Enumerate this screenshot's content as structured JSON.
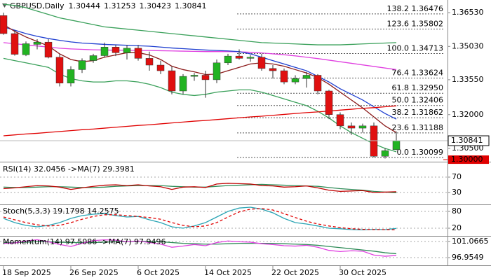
{
  "chart_data": [
    {
      "type": "candlestick",
      "symbol": "GBPUSD,Daily",
      "header_values": [
        1.30444,
        1.31253,
        1.30423,
        1.30841
      ],
      "categories": [
        "18 Sep 2025",
        null,
        null,
        null,
        null,
        null,
        "26 Sep 2025",
        null,
        null,
        null,
        null,
        null,
        "6 Oct 2025",
        null,
        null,
        null,
        null,
        null,
        "14 Oct 2025",
        null,
        null,
        null,
        null,
        null,
        "22 Oct 2025",
        null,
        null,
        null,
        null,
        null,
        "30 Oct 2025",
        null,
        null,
        null,
        null,
        null
      ],
      "open": [
        1.364,
        1.356,
        1.3466,
        1.3512,
        1.3522,
        1.3455,
        1.334,
        1.34,
        1.344,
        1.3462,
        1.35,
        1.3475,
        1.3495,
        1.345,
        1.342,
        1.3395,
        1.3305,
        1.337,
        1.3375,
        1.3355,
        1.343,
        1.346,
        1.345,
        1.3455,
        1.3405,
        1.3395,
        1.3345,
        1.336,
        1.3375,
        1.3305,
        1.32,
        1.315,
        1.314,
        1.315,
        1.3015,
        1.30444
      ],
      "high": [
        1.3653,
        1.3575,
        1.3525,
        1.3535,
        1.3535,
        1.347,
        1.3415,
        1.345,
        1.347,
        1.352,
        1.351,
        1.351,
        1.351,
        1.348,
        1.344,
        1.3415,
        1.338,
        1.3385,
        1.3395,
        1.3445,
        1.347,
        1.349,
        1.3465,
        1.347,
        1.342,
        1.3405,
        1.3375,
        1.339,
        1.338,
        1.331,
        1.321,
        1.3165,
        1.316,
        1.3165,
        1.305,
        1.31253
      ],
      "low": [
        1.3555,
        1.3462,
        1.346,
        1.349,
        1.345,
        1.3325,
        1.3325,
        1.3385,
        1.343,
        1.3455,
        1.346,
        1.3445,
        1.344,
        1.3395,
        1.338,
        1.329,
        1.329,
        1.335,
        1.3275,
        1.334,
        1.342,
        1.3445,
        1.3435,
        1.3395,
        1.336,
        1.3335,
        1.3335,
        1.332,
        1.329,
        1.318,
        1.3135,
        1.311,
        1.312,
        1.301,
        1.3005,
        1.30423
      ],
      "close": [
        1.356,
        1.3468,
        1.3515,
        1.3522,
        1.3455,
        1.334,
        1.34,
        1.344,
        1.3462,
        1.35,
        1.3475,
        1.3495,
        1.345,
        1.342,
        1.3395,
        1.3305,
        1.337,
        1.3375,
        1.3355,
        1.343,
        1.346,
        1.345,
        1.3455,
        1.3405,
        1.3395,
        1.3345,
        1.336,
        1.3375,
        1.3305,
        1.32,
        1.315,
        1.314,
        1.315,
        1.3015,
        1.304,
        1.30841
      ],
      "up_color": "#22b322",
      "down_color": "#e01010",
      "series": [
        {
          "color": "#3aa05a",
          "values": [
            1.369,
            1.3685,
            1.3675,
            1.366,
            1.3645,
            1.363,
            1.362,
            1.361,
            1.36,
            1.359,
            1.3585,
            1.358,
            1.3575,
            1.357,
            1.3565,
            1.356,
            1.3555,
            1.355,
            1.3545,
            1.354,
            1.3535,
            1.353,
            1.3525,
            1.352,
            1.3518,
            1.3516,
            1.3514,
            1.3512,
            1.351,
            1.351,
            1.351,
            1.3512,
            1.3514,
            1.3516,
            1.3518,
            1.352
          ]
        },
        {
          "color": "#3aa05a",
          "values": [
            1.345,
            1.344,
            1.343,
            1.342,
            1.341,
            1.338,
            1.336,
            1.335,
            1.3345,
            1.3345,
            1.335,
            1.335,
            1.3345,
            1.3335,
            1.332,
            1.33,
            1.329,
            1.3285,
            1.329,
            1.33,
            1.3305,
            1.331,
            1.331,
            1.33,
            1.3285,
            1.327,
            1.3255,
            1.324,
            1.3215,
            1.3185,
            1.315,
            1.312,
            1.3095,
            1.307,
            1.305,
            1.3035
          ]
        },
        {
          "color": "#e040e0",
          "values": [
            1.352,
            1.3515,
            1.351,
            1.3505,
            1.35,
            1.3495,
            1.3492,
            1.349,
            1.3488,
            1.3487,
            1.3486,
            1.3486,
            1.3485,
            1.3485,
            1.3484,
            1.3483,
            1.3482,
            1.3481,
            1.348,
            1.348,
            1.348,
            1.3479,
            1.3477,
            1.3474,
            1.347,
            1.3466,
            1.3461,
            1.3455,
            1.3449,
            1.3442,
            1.3435,
            1.3428,
            1.3421,
            1.3414,
            1.3407,
            1.34
          ]
        },
        {
          "color": "#1f3fd0",
          "values": [
            1.359,
            1.3575,
            1.356,
            1.3548,
            1.3538,
            1.353,
            1.3523,
            1.3518,
            1.3515,
            1.3512,
            1.351,
            1.3508,
            1.3506,
            1.3504,
            1.35,
            1.3496,
            1.3493,
            1.349,
            1.3487,
            1.3485,
            1.3483,
            1.348,
            1.347,
            1.3455,
            1.344,
            1.3425,
            1.341,
            1.3395,
            1.337,
            1.3345,
            1.3315,
            1.329,
            1.3265,
            1.3235,
            1.3205,
            1.318
          ]
        },
        {
          "color": "#e00000",
          "values": [
            1.3106,
            1.311,
            1.3114,
            1.3117,
            1.3121,
            1.3125,
            1.3129,
            1.3133,
            1.3136,
            1.314,
            1.3144,
            1.3148,
            1.3152,
            1.3155,
            1.3159,
            1.3163,
            1.3167,
            1.3171,
            1.3174,
            1.3178,
            1.3182,
            1.3186,
            1.319,
            1.3193,
            1.3197,
            1.3201,
            1.3205,
            1.3209,
            1.3212,
            1.3216,
            1.322,
            1.3224,
            1.3228,
            1.3231,
            1.3235,
            1.3239
          ]
        },
        {
          "color": "#8b1a1a",
          "values": [
            1.36,
            1.357,
            1.3545,
            1.3525,
            1.3505,
            1.347,
            1.3445,
            1.3435,
            1.344,
            1.3455,
            1.3465,
            1.3475,
            1.3475,
            1.3465,
            1.3445,
            1.3415,
            1.34,
            1.339,
            1.3378,
            1.338,
            1.3395,
            1.341,
            1.3425,
            1.343,
            1.3425,
            1.3415,
            1.34,
            1.3385,
            1.3365,
            1.3335,
            1.33,
            1.3265,
            1.323,
            1.319,
            1.315,
            1.312
          ]
        }
      ],
      "fib_levels": [
        {
          "label": "138.2 1.36476",
          "value": 1.36476
        },
        {
          "label": "123.6 1.35802",
          "value": 1.35802
        },
        {
          "label": "100.0 1.34713",
          "value": 1.34713
        },
        {
          "label": "76.4 1.33624",
          "value": 1.33624
        },
        {
          "label": "61.8 1.32950",
          "value": 1.3295
        },
        {
          "label": "50.0 1.32406",
          "value": 1.32406
        },
        {
          "label": "38.2 1.31862",
          "value": 1.31862
        },
        {
          "label": "23.6 1.31188",
          "value": 1.31188
        },
        {
          "label": "0.0 1.30099",
          "value": 1.30099
        }
      ],
      "last_price": 1.30841,
      "level_line": {
        "value": 1.3,
        "label": "1.30000"
      },
      "ylim": [
        1.2994,
        1.3703
      ],
      "yticks": [
        {
          "value": 1.3653,
          "label": "1.36530"
        },
        {
          "value": 1.3503,
          "label": "1.35030"
        },
        {
          "value": 1.3355,
          "label": "1.33550"
        },
        {
          "value": 1.32,
          "label": "1.32000"
        },
        {
          "value": 1.305,
          "label": "1.30500"
        }
      ],
      "grid": false
    },
    {
      "type": "line",
      "title": "RSI(14) 32.0456 ->MA(7) 29.3981",
      "series": [
        {
          "color": "#2e8b57",
          "values": [
            44,
            43,
            43,
            44,
            45,
            45,
            44,
            43,
            43,
            44,
            46,
            47,
            48,
            48,
            48,
            46,
            45,
            44,
            44,
            46,
            48,
            49,
            50,
            51,
            50,
            49,
            48,
            47,
            46,
            43,
            40,
            38,
            36,
            33,
            31,
            29.3981
          ]
        },
        {
          "color": "#c00000",
          "values": [
            40,
            42,
            45,
            48,
            47,
            44,
            38,
            42,
            46,
            49,
            50,
            48,
            50,
            47,
            45,
            38,
            44,
            45,
            43,
            52,
            54,
            53,
            52,
            48,
            47,
            44,
            45,
            47,
            42,
            36,
            33,
            34,
            35,
            30,
            31,
            32.0456
          ]
        }
      ],
      "ylim": [
        -0.9,
        106.4
      ],
      "yticks": [
        70,
        30
      ],
      "grid": true
    },
    {
      "type": "line",
      "title": "Stoch(5,3,3) 19.1798 14.2575",
      "series": [
        {
          "color": "#2aa4b4",
          "values": [
            55,
            40,
            30,
            25,
            30,
            40,
            55,
            65,
            70,
            72,
            65,
            60,
            62,
            50,
            40,
            25,
            20,
            28,
            40,
            60,
            80,
            92,
            95,
            88,
            75,
            55,
            40,
            35,
            28,
            20,
            18,
            15,
            14,
            16,
            15,
            19.1798
          ]
        },
        {
          "color": "#e00000",
          "dashed": true,
          "values": [
            60,
            50,
            40,
            32,
            28,
            30,
            40,
            52,
            62,
            68,
            68,
            65,
            62,
            58,
            52,
            40,
            30,
            25,
            28,
            40,
            60,
            78,
            88,
            90,
            85,
            72,
            58,
            45,
            35,
            28,
            22,
            18,
            16,
            15,
            15,
            14.2575
          ]
        }
      ],
      "ylim": [
        -7.5,
        102.5
      ],
      "yticks": [
        80,
        20
      ],
      "grid": true
    },
    {
      "type": "line",
      "title": "Momentum(14) 97.5086 ->MA(7) 97.9496",
      "series": [
        {
          "color": "#2e8b57",
          "values": [
            100.8,
            100.8,
            100.9,
            101.0,
            101.0,
            100.9,
            100.8,
            100.8,
            100.8,
            100.9,
            101.0,
            101.0,
            101.1,
            101.1,
            101.0,
            100.8,
            100.6,
            100.5,
            100.4,
            100.4,
            100.5,
            100.6,
            100.6,
            100.6,
            100.6,
            100.5,
            100.4,
            100.3,
            100.1,
            99.8,
            99.5,
            99.2,
            98.9,
            98.6,
            98.2,
            97.9496
          ]
        },
        {
          "color": "#e040e0",
          "values": [
            100.6,
            100.7,
            101.2,
            101.5,
            101.0,
            100.3,
            99.8,
            100.6,
            101.3,
            101.5,
            101.4,
            101.0,
            101.2,
            100.8,
            100.4,
            99.6,
            99.9,
            100.3,
            100.0,
            100.8,
            101.2,
            101.0,
            100.9,
            100.5,
            100.3,
            100.0,
            99.9,
            100.1,
            99.6,
            98.8,
            98.5,
            98.7,
            98.6,
            97.6,
            97.3,
            97.5086
          ]
        }
      ],
      "ylim": [
        95.17,
        102.32
      ],
      "yticks": [
        101.0665,
        96.9549
      ],
      "grid": true
    }
  ]
}
